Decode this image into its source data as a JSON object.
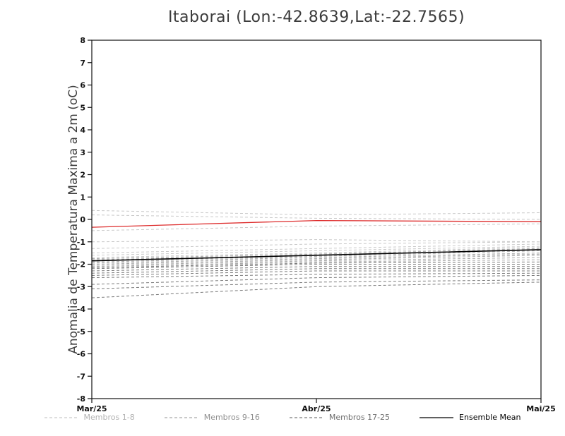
{
  "chart_data": {
    "type": "line",
    "title": "Itaborai (Lon:-42.8639,Lat:-22.7565)",
    "ylabel": "Anomalia de Temperatura Maxima a 2m (oC)",
    "xlabel": "",
    "ylim": [
      -8,
      8
    ],
    "ytick_step": 1,
    "x_categories": [
      "Mar/25",
      "Abr/25",
      "Mai/25"
    ],
    "grid": false,
    "legend_position": "bottom",
    "frame_color": "#111111",
    "tick_label_color": "#111111",
    "series_groups": [
      {
        "name": "Membros 1-8",
        "color": "#c9c9c9",
        "label_color": "#b2b2b2",
        "dash": true
      },
      {
        "name": "Membros 9-16",
        "color": "#a9a9a9",
        "label_color": "#8f8f8f",
        "dash": true
      },
      {
        "name": "Membros 17-25",
        "color": "#7a7a7a",
        "label_color": "#6e6e6e",
        "dash": true
      },
      {
        "name": "Ensemble Mean",
        "color": "#000000",
        "label_color": "#000000",
        "dash": false
      }
    ],
    "members": [
      {
        "g": 0,
        "v": [
          0.4,
          0.2,
          0.3
        ]
      },
      {
        "g": 0,
        "v": [
          0.2,
          0.05,
          0.0
        ]
      },
      {
        "g": 0,
        "v": [
          -0.5,
          -0.3,
          -0.2
        ]
      },
      {
        "g": 0,
        "v": [
          -1.0,
          -0.9,
          -1.0
        ]
      },
      {
        "g": 0,
        "v": [
          -1.3,
          -1.1,
          -1.0
        ]
      },
      {
        "g": 0,
        "v": [
          -1.5,
          -1.3,
          -1.1
        ]
      },
      {
        "g": 0,
        "v": [
          -1.6,
          -1.4,
          -1.2
        ]
      },
      {
        "g": 0,
        "v": [
          -1.7,
          -1.5,
          -1.25
        ]
      },
      {
        "g": 1,
        "v": [
          -1.75,
          -1.55,
          -1.3
        ]
      },
      {
        "g": 1,
        "v": [
          -1.8,
          -1.6,
          -1.35
        ]
      },
      {
        "g": 1,
        "v": [
          -1.85,
          -1.65,
          -1.4
        ]
      },
      {
        "g": 1,
        "v": [
          -1.9,
          -1.7,
          -1.5
        ]
      },
      {
        "g": 1,
        "v": [
          -1.95,
          -1.75,
          -1.55
        ]
      },
      {
        "g": 1,
        "v": [
          -2.0,
          -1.8,
          -1.6
        ]
      },
      {
        "g": 1,
        "v": [
          -2.05,
          -1.85,
          -1.7
        ]
      },
      {
        "g": 1,
        "v": [
          -2.1,
          -1.9,
          -1.8
        ]
      },
      {
        "g": 2,
        "v": [
          -2.15,
          -1.95,
          -1.9
        ]
      },
      {
        "g": 2,
        "v": [
          -2.2,
          -2.0,
          -2.0
        ]
      },
      {
        "g": 2,
        "v": [
          -2.3,
          -2.1,
          -2.1
        ]
      },
      {
        "g": 2,
        "v": [
          -2.4,
          -2.2,
          -2.2
        ]
      },
      {
        "g": 2,
        "v": [
          -2.5,
          -2.3,
          -2.3
        ]
      },
      {
        "g": 2,
        "v": [
          -2.6,
          -2.45,
          -2.4
        ]
      },
      {
        "g": 2,
        "v": [
          -2.9,
          -2.6,
          -2.5
        ]
      },
      {
        "g": 2,
        "v": [
          -3.1,
          -2.8,
          -2.7
        ]
      },
      {
        "g": 2,
        "v": [
          -3.5,
          -3.0,
          -2.8
        ]
      }
    ],
    "ensemble_mean": {
      "name": "Ensemble Mean",
      "color": "#000000",
      "values": [
        -1.85,
        -1.6,
        -1.35
      ]
    },
    "red_line": {
      "name": "red-line",
      "color": "#dd2b2b",
      "values": [
        -0.35,
        -0.05,
        -0.1
      ]
    }
  }
}
